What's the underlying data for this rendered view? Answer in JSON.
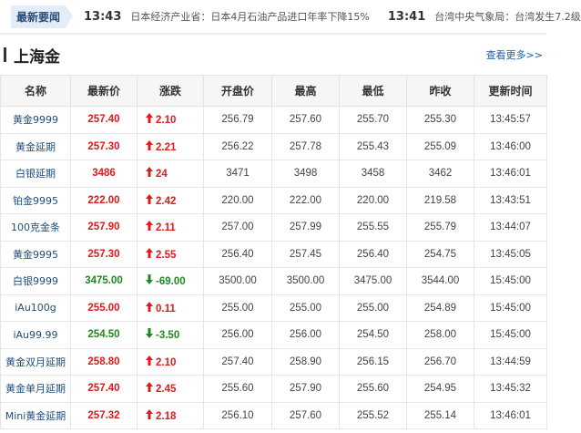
{
  "ticker": {
    "label": "最新要闻",
    "items": [
      {
        "time": "13:43",
        "text": "日本经济产业省：日本4月石油产品进口年率下降15%"
      },
      {
        "time": "13:41",
        "text": "台湾中央气象局：台湾发生7.2级"
      }
    ]
  },
  "section": {
    "title": "上海金",
    "more": "查看更多>>"
  },
  "colors": {
    "up": "#e01a1a",
    "down": "#1e8a1e"
  },
  "table": {
    "headers": [
      "名称",
      "最新价",
      "涨跌",
      "开盘价",
      "最高",
      "最低",
      "昨收",
      "更新时间"
    ],
    "rows": [
      {
        "name": "黄金9999",
        "price": "257.40",
        "change": "2.10",
        "dir": "up",
        "open": "256.79",
        "high": "257.60",
        "low": "255.70",
        "prev": "255.30",
        "time": "13:45:57"
      },
      {
        "name": "黄金延期",
        "price": "257.30",
        "change": "2.21",
        "dir": "up",
        "open": "256.22",
        "high": "257.78",
        "low": "255.43",
        "prev": "255.09",
        "time": "13:46:00"
      },
      {
        "name": "白银延期",
        "price": "3486",
        "change": "24",
        "dir": "up",
        "open": "3471",
        "high": "3498",
        "low": "3458",
        "prev": "3462",
        "time": "13:46:01"
      },
      {
        "name": "铂金9995",
        "price": "222.00",
        "change": "2.42",
        "dir": "up",
        "open": "220.00",
        "high": "222.00",
        "low": "220.00",
        "prev": "219.58",
        "time": "13:43:51"
      },
      {
        "name": "100克金条",
        "price": "257.90",
        "change": "2.11",
        "dir": "up",
        "open": "257.00",
        "high": "257.99",
        "low": "255.55",
        "prev": "255.79",
        "time": "13:44:07"
      },
      {
        "name": "黄金9995",
        "price": "257.30",
        "change": "2.55",
        "dir": "up",
        "open": "256.40",
        "high": "257.45",
        "low": "256.40",
        "prev": "254.75",
        "time": "13:45:05"
      },
      {
        "name": "白银9999",
        "price": "3475.00",
        "change": "-69.00",
        "dir": "down",
        "open": "3500.00",
        "high": "3500.00",
        "low": "3475.00",
        "prev": "3544.00",
        "time": "15:45:00"
      },
      {
        "name": "iAu100g",
        "price": "255.00",
        "change": "0.11",
        "dir": "up",
        "open": "255.00",
        "high": "255.00",
        "low": "255.00",
        "prev": "254.89",
        "time": "15:45:00"
      },
      {
        "name": "iAu99.99",
        "price": "254.50",
        "change": "-3.50",
        "dir": "down",
        "open": "256.00",
        "high": "256.00",
        "low": "254.50",
        "prev": "258.00",
        "time": "15:45:00"
      },
      {
        "name": "黄金双月延期",
        "price": "258.80",
        "change": "2.10",
        "dir": "up",
        "open": "257.40",
        "high": "258.90",
        "low": "256.15",
        "prev": "256.70",
        "time": "13:44:59"
      },
      {
        "name": "黄金单月延期",
        "price": "257.40",
        "change": "2.45",
        "dir": "up",
        "open": "255.60",
        "high": "257.90",
        "low": "255.60",
        "prev": "254.95",
        "time": "13:45:32"
      },
      {
        "name": "Mini黄金延期",
        "price": "257.32",
        "change": "2.18",
        "dir": "up",
        "open": "256.10",
        "high": "257.60",
        "low": "255.52",
        "prev": "255.14",
        "time": "13:46:01"
      }
    ]
  }
}
